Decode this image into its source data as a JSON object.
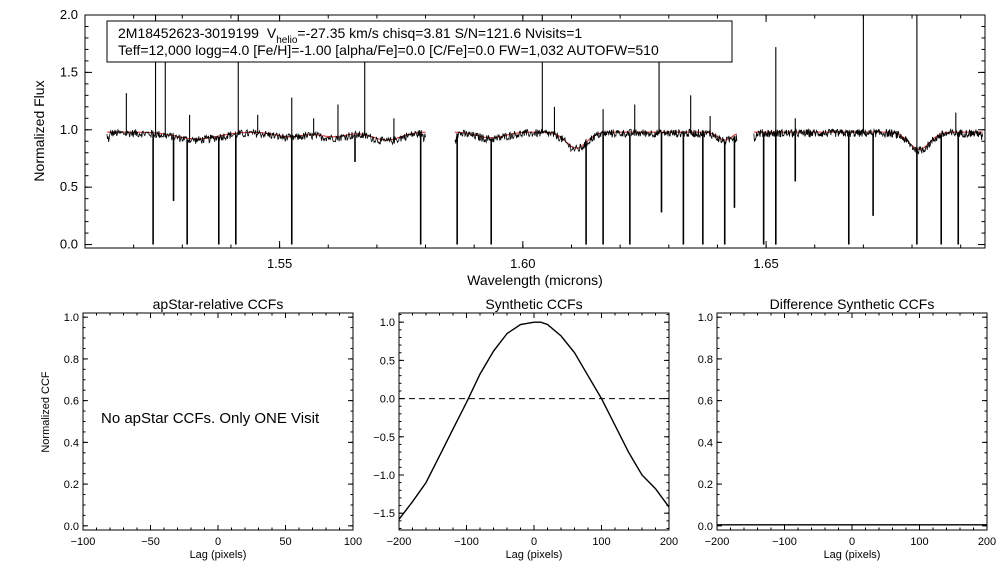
{
  "colors": {
    "spectrum": "#000000",
    "model": "#cc2222",
    "frame": "#000000"
  },
  "info_box": {
    "star_id": "2M18452623-3019199",
    "vhelio_label": "V",
    "vhelio_subscript": "helio",
    "line1_rest": "=-27.35 km/s  chisq=3.81  S/N=121.6  Nvisits=1",
    "line2": "Teff=12,000 logg=4.0 [Fe/H]=-1.00 [alpha/Fe]=0.0 [C/Fe]=0.0 FW=1,032 AUTOFW=510"
  },
  "note": "No apStar CCFs.  Only ONE Visit",
  "chart_data": [
    {
      "type": "line",
      "id": "spectrum",
      "title": "",
      "xlabel": "Wavelength (microns)",
      "ylabel": "Normalized Flux",
      "xlim": [
        1.51,
        1.695
      ],
      "ylim": [
        -0.03,
        2.0
      ],
      "xticks": [
        "1.55",
        "1.60",
        "1.65"
      ],
      "xtick_values": [
        1.55,
        1.6,
        1.65
      ],
      "yticks": [
        "0.0",
        "0.5",
        "1.0",
        "1.5",
        "2.0"
      ],
      "ytick_values": [
        0,
        0.5,
        1.0,
        1.5,
        2.0
      ],
      "chips": [
        [
          1.5145,
          1.58
        ],
        [
          1.586,
          1.644
        ],
        [
          1.6475,
          1.6945
        ]
      ],
      "continuum_dips": [
        {
          "center": 1.533,
          "depth": 0.06,
          "width": 0.006
        },
        {
          "center": 1.552,
          "depth": 0.04,
          "width": 0.004
        },
        {
          "center": 1.561,
          "depth": 0.04,
          "width": 0.004
        },
        {
          "center": 1.572,
          "depth": 0.07,
          "width": 0.004
        },
        {
          "center": 1.5935,
          "depth": 0.05,
          "width": 0.004
        },
        {
          "center": 1.611,
          "depth": 0.14,
          "width": 0.003
        },
        {
          "center": 1.6415,
          "depth": 0.07,
          "width": 0.002
        },
        {
          "center": 1.6815,
          "depth": 0.15,
          "width": 0.003
        }
      ],
      "emission_lines": [
        {
          "x": 1.5185,
          "flux": 1.32
        },
        {
          "x": 1.5245,
          "flux": 2.0
        },
        {
          "x": 1.5265,
          "flux": 1.8
        },
        {
          "x": 1.5315,
          "flux": 1.13
        },
        {
          "x": 1.5415,
          "flux": 2.0
        },
        {
          "x": 1.5455,
          "flux": 1.13
        },
        {
          "x": 1.5525,
          "flux": 1.28
        },
        {
          "x": 1.557,
          "flux": 1.1
        },
        {
          "x": 1.562,
          "flux": 1.22
        },
        {
          "x": 1.5675,
          "flux": 1.72
        },
        {
          "x": 1.5735,
          "flux": 1.1
        },
        {
          "x": 1.604,
          "flux": 2.0
        },
        {
          "x": 1.6065,
          "flux": 1.2
        },
        {
          "x": 1.6165,
          "flux": 1.18
        },
        {
          "x": 1.623,
          "flux": 1.22
        },
        {
          "x": 1.628,
          "flux": 1.65
        },
        {
          "x": 1.6345,
          "flux": 1.3
        },
        {
          "x": 1.6385,
          "flux": 1.12
        },
        {
          "x": 1.652,
          "flux": 1.72
        },
        {
          "x": 1.656,
          "flux": 1.1
        },
        {
          "x": 1.67,
          "flux": 2.0
        },
        {
          "x": 1.681,
          "flux": 2.0
        },
        {
          "x": 1.689,
          "flux": 1.15
        }
      ],
      "absorption_lines": [
        {
          "x": 1.524,
          "flux": 0.0
        },
        {
          "x": 1.5282,
          "flux": 0.38
        },
        {
          "x": 1.531,
          "flux": 0.0
        },
        {
          "x": 1.5375,
          "flux": 0.0
        },
        {
          "x": 1.541,
          "flux": 0.0
        },
        {
          "x": 1.5525,
          "flux": 0.0
        },
        {
          "x": 1.5655,
          "flux": 0.72
        },
        {
          "x": 1.579,
          "flux": 0.0
        },
        {
          "x": 1.5865,
          "flux": 0.0
        },
        {
          "x": 1.5935,
          "flux": 0.0
        },
        {
          "x": 1.613,
          "flux": 0.0
        },
        {
          "x": 1.6165,
          "flux": 0.0
        },
        {
          "x": 1.622,
          "flux": 0.0
        },
        {
          "x": 1.6285,
          "flux": 0.28
        },
        {
          "x": 1.633,
          "flux": 0.0
        },
        {
          "x": 1.637,
          "flux": 0.0
        },
        {
          "x": 1.6415,
          "flux": 0.0
        },
        {
          "x": 1.6435,
          "flux": 0.32
        },
        {
          "x": 1.6495,
          "flux": 0.0
        },
        {
          "x": 1.652,
          "flux": 0.0
        },
        {
          "x": 1.656,
          "flux": 0.55
        },
        {
          "x": 1.667,
          "flux": 0.0
        },
        {
          "x": 1.672,
          "flux": 0.25
        },
        {
          "x": 1.681,
          "flux": 0.0
        },
        {
          "x": 1.686,
          "flux": 0.0
        },
        {
          "x": 1.6895,
          "flux": 0.0
        }
      ]
    },
    {
      "type": "line",
      "id": "apstar-ccf",
      "title": "apStar-relative CCFs",
      "xlabel": "Lag (pixels)",
      "ylabel": "Normalized CCF",
      "xlim": [
        -100,
        100
      ],
      "ylim": [
        -0.02,
        1.02
      ],
      "xticks": [
        "-100",
        "-50",
        "0",
        "50",
        "100"
      ],
      "xtick_values": [
        -100,
        -50,
        0,
        50,
        100
      ],
      "yticks": [
        "0.0",
        "0.2",
        "0.4",
        "0.6",
        "0.8",
        "1.0"
      ],
      "ytick_values": [
        0,
        0.2,
        0.4,
        0.6,
        0.8,
        1.0
      ],
      "series": []
    },
    {
      "type": "line",
      "id": "synthetic-ccf",
      "title": "Synthetic CCFs",
      "xlabel": "Lag (pixels)",
      "ylabel": "",
      "xlim": [
        -200,
        200
      ],
      "ylim": [
        -1.72,
        1.12
      ],
      "xticks": [
        "-200",
        "-100",
        "0",
        "100",
        "200"
      ],
      "xtick_values": [
        -200,
        -100,
        0,
        100,
        200
      ],
      "yticks": [
        "-1.5",
        "-1.0",
        "-0.5",
        "0.0",
        "0.5",
        "1.0"
      ],
      "ytick_values": [
        -1.5,
        -1.0,
        -0.5,
        0.0,
        0.5,
        1.0
      ],
      "reference_line": 0.0,
      "series": [
        {
          "name": "Synthetic CCF",
          "x": [
            -200,
            -180,
            -160,
            -140,
            -120,
            -100,
            -80,
            -60,
            -40,
            -20,
            0,
            10,
            20,
            40,
            60,
            80,
            100,
            120,
            140,
            160,
            180,
            200
          ],
          "y": [
            -1.58,
            -1.35,
            -1.1,
            -0.75,
            -0.4,
            -0.05,
            0.32,
            0.62,
            0.85,
            0.97,
            1.0,
            1.0,
            0.97,
            0.82,
            0.6,
            0.3,
            0.0,
            -0.35,
            -0.7,
            -1.0,
            -1.18,
            -1.42
          ]
        }
      ]
    },
    {
      "type": "line",
      "id": "difference-ccf",
      "title": "Difference Synthetic CCFs",
      "xlabel": "Lag (pixels)",
      "ylabel": "",
      "xlim": [
        -200,
        200
      ],
      "ylim": [
        -0.02,
        1.02
      ],
      "xticks": [
        "-200",
        "-100",
        "0",
        "100",
        "200"
      ],
      "xtick_values": [
        -200,
        -100,
        0,
        100,
        200
      ],
      "yticks": [
        "0.0",
        "0.2",
        "0.4",
        "0.6",
        "0.8",
        "1.0"
      ],
      "ytick_values": [
        0,
        0.2,
        0.4,
        0.6,
        0.8,
        1.0
      ],
      "series": [
        {
          "name": "Difference",
          "x": [
            -200,
            200
          ],
          "y": [
            0.0,
            0.0
          ]
        }
      ]
    }
  ]
}
